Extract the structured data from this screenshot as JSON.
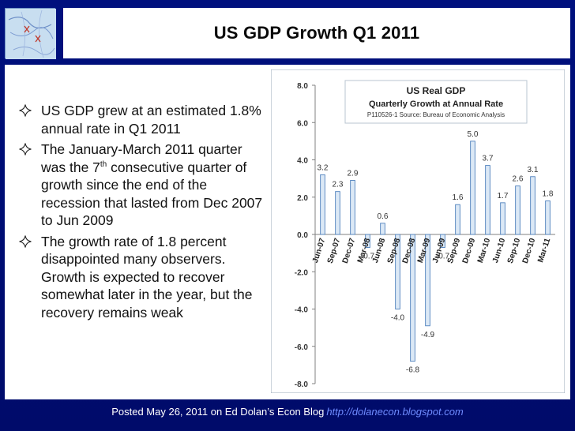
{
  "slide": {
    "title": "US GDP Growth Q1 2011",
    "bullets": [
      {
        "text": "US GDP grew at an estimated 1.8% annual rate in Q1 2011"
      },
      {
        "pre": "The January-March 2011 quarter was the 7",
        "sup": "th",
        "post": " consecutive quarter of growth since the end of the recession that lasted from Dec 2007 to Jun 2009"
      },
      {
        "text": "The growth rate of 1.8 percent disappointed many observers. Growth is expected to recover somewhat later in the year, but the recovery remains weak"
      }
    ],
    "footer": {
      "text": "Posted May 26, 2011 on Ed Dolan’s Econ Blog",
      "url": "http://dolanecon.blogspot.com"
    }
  },
  "colors": {
    "background": "#000b6a",
    "bar_fill": "#dce9f6",
    "bar_stroke": "#4f81bd",
    "footer_url": "#6f8cff"
  },
  "icons": {
    "bullet": "diamond-outline-icon"
  },
  "chart_data": {
    "type": "bar",
    "title": "US Real GDP",
    "subtitle": "Quarterly Growth at Annual Rate",
    "note": "P110526-1 Source: Bureau of Economic Analysis",
    "categories": [
      "Jun-07",
      "Sep-07",
      "Dec-07",
      "Mar-08",
      "Jun-08",
      "Sep-08",
      "Dec-08",
      "Mar-09",
      "Jun-09",
      "Sep-09",
      "Dec-09",
      "Mar-10",
      "Jun-10",
      "Sep-10",
      "Dec-10",
      "Mar-11"
    ],
    "values": [
      3.2,
      2.3,
      2.9,
      -0.7,
      0.6,
      -4.0,
      -6.8,
      -4.9,
      -0.7,
      1.6,
      5.0,
      3.7,
      1.7,
      2.6,
      3.1,
      1.8
    ],
    "value_labels": [
      "3.2",
      "2.3",
      "2.9",
      "-0.7",
      "0.6",
      "-4.0",
      "-6.8",
      "-4.9",
      "-0.7",
      "1.6",
      "5.0",
      "3.7",
      "1.7",
      "2.6",
      "3.1",
      "1.8"
    ],
    "ylim": [
      -8,
      8
    ],
    "yticks": [
      "8.0",
      "6.0",
      "4.0",
      "2.0",
      "0.0",
      "-2.0",
      "-4.0",
      "-6.0",
      "-8.0"
    ],
    "ytick_values": [
      8,
      6,
      4,
      2,
      0,
      -2,
      -4,
      -6,
      -8
    ],
    "xlabel": "",
    "ylabel": "",
    "grid": false
  }
}
